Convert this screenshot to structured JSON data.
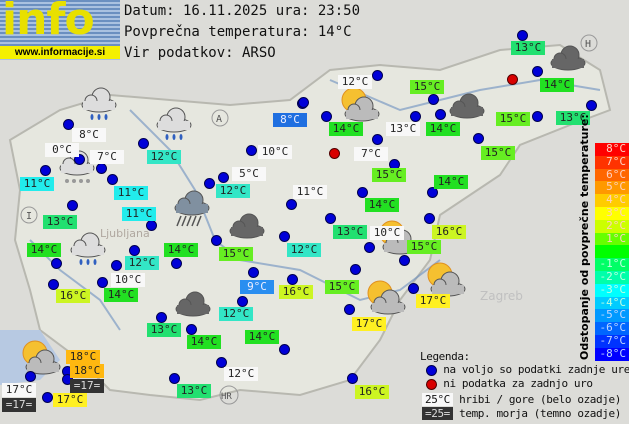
{
  "logo": {
    "text": "info",
    "url": "www.informacije.si"
  },
  "header": {
    "date_line": "Datum: 16.11.2025 ura: 23:50",
    "avg_temp_line": "Povprečna temperatura: 14°C",
    "source_line": "Vir podatkov: ARSO"
  },
  "stations": [
    {
      "t": "8°C",
      "k": "mountain"
    },
    {
      "t": "0°C",
      "k": "mountain"
    },
    {
      "t": "7°C",
      "k": "mountain"
    },
    {
      "t": "12°C",
      "k": "normal"
    },
    {
      "t": "10°C",
      "k": "mountain"
    },
    {
      "t": "8°C",
      "k": "normal"
    },
    {
      "t": "11°C",
      "k": "normal"
    },
    {
      "t": "5°C",
      "k": "mountain"
    },
    {
      "t": "12°C",
      "k": "normal"
    },
    {
      "t": "11°C",
      "k": "normal"
    },
    {
      "t": "11°C",
      "k": "mountain"
    },
    {
      "t": "11°C",
      "k": "normal"
    },
    {
      "t": "13°C",
      "k": "normal"
    },
    {
      "t": "13°C",
      "k": "normal"
    },
    {
      "t": "12°C",
      "k": "mountain"
    },
    {
      "t": "15°C",
      "k": "normal"
    },
    {
      "t": "14°C",
      "k": "normal"
    },
    {
      "t": "14°C",
      "k": "normal"
    },
    {
      "t": "13°C",
      "k": "mountain"
    },
    {
      "t": "14°C",
      "k": "normal"
    },
    {
      "t": "15°C",
      "k": "normal"
    },
    {
      "t": "13°C",
      "k": "normal"
    },
    {
      "t": "7°C",
      "k": "mountain"
    },
    {
      "t": "15°C",
      "k": "normal"
    },
    {
      "t": "15°C",
      "k": "normal"
    },
    {
      "t": "14°C",
      "k": "normal"
    },
    {
      "t": "14°C",
      "k": "normal"
    },
    {
      "t": "14°C",
      "k": "normal"
    },
    {
      "t": "14°C",
      "k": "normal"
    },
    {
      "t": "15°C",
      "k": "normal"
    },
    {
      "t": "12°C",
      "k": "normal"
    },
    {
      "t": "13°C",
      "k": "normal"
    },
    {
      "t": "10°C",
      "k": "mountain"
    },
    {
      "t": "16°C",
      "k": "normal"
    },
    {
      "t": "15°C",
      "k": "normal"
    },
    {
      "t": "12°C",
      "k": "normal"
    },
    {
      "t": "10°C",
      "k": "mountain"
    },
    {
      "t": "14°C",
      "k": "normal"
    },
    {
      "t": "16°C",
      "k": "normal"
    },
    {
      "t": "9°C",
      "k": "normal"
    },
    {
      "t": "16°C",
      "k": "normal"
    },
    {
      "t": "15°C",
      "k": "normal"
    },
    {
      "t": "17°C",
      "k": "normal"
    },
    {
      "t": "12°C",
      "k": "normal"
    },
    {
      "t": "17°C",
      "k": "normal"
    },
    {
      "t": "13°C",
      "k": "normal"
    },
    {
      "t": "14°C",
      "k": "normal"
    },
    {
      "t": "14°C",
      "k": "normal"
    },
    {
      "t": "18°C",
      "k": "normal"
    },
    {
      "t": "18°C",
      "k": "normal"
    },
    {
      "t": "=17=",
      "k": "sea"
    },
    {
      "t": "12°C",
      "k": "mountain"
    },
    {
      "t": "17°C",
      "k": "mountain"
    },
    {
      "t": "=17=",
      "k": "sea"
    },
    {
      "t": "17°C",
      "k": "normal"
    },
    {
      "t": "13°C",
      "k": "normal"
    },
    {
      "t": "16°C",
      "k": "normal"
    }
  ],
  "station_colors": {
    "8": "#1f6fe0",
    "9": "#2a8ef0",
    "11": "#22ecec",
    "12": "#33e6c6",
    "13": "#22e070",
    "14": "#22e022",
    "15": "#66ee22",
    "16": "#ccf522",
    "17": "#fff022",
    "18": "#ffb810",
    "mountain": "#f8f8f8",
    "sea": "#333333"
  },
  "dot_statuses": [
    "ok",
    "ok",
    "ok",
    "ok",
    "ok",
    "ok",
    "ok",
    "ok",
    "ok",
    "ok",
    "ok",
    "ok",
    "ok",
    "ok",
    "ok",
    "ok",
    "ok",
    "ok",
    "ok",
    "ok",
    "ok",
    "ok",
    "ok",
    "missing",
    "missing",
    "ok",
    "ok",
    "ok",
    "ok",
    "ok",
    "ok",
    "ok",
    "ok",
    "ok",
    "ok",
    "ok",
    "ok",
    "ok",
    "ok",
    "ok",
    "ok",
    "ok",
    "ok",
    "ok",
    "ok",
    "ok",
    "ok",
    "ok",
    "ok",
    "ok",
    "ok",
    "ok",
    "ok",
    "ok",
    "ok",
    "ok",
    "ok",
    "ok",
    "ok",
    "ok"
  ],
  "weather_icons": [
    "rain",
    "rain",
    "snow",
    "heavy-rain",
    "overcast",
    "rain",
    "partly-cloudy",
    "overcast",
    "overcast",
    "partly-cloudy",
    "partly-cloudy",
    "partly-cloudy",
    "overcast",
    "partly-cloudy"
  ],
  "map_labels": {
    "austria": "A",
    "hungary": "H",
    "italy": "I",
    "croatia": "HR",
    "ljubljana": "Ljubljana",
    "zagreb": "Zagreb"
  },
  "scale": {
    "title": "Odstopanje od povprečne temperature:",
    "rows": [
      {
        "label": "8°C",
        "color": "#ff0000"
      },
      {
        "label": "7°C",
        "color": "#ff3300"
      },
      {
        "label": "6°C",
        "color": "#ff6600"
      },
      {
        "label": "5°C",
        "color": "#ff9900"
      },
      {
        "label": "4°C",
        "color": "#ffcc00"
      },
      {
        "label": "3°C",
        "color": "#ffff00"
      },
      {
        "label": "2°C",
        "color": "#ccff00"
      },
      {
        "label": "1°C",
        "color": "#66ff00"
      },
      {
        "label": "",
        "color": "#00ff00"
      },
      {
        "label": "-1°C",
        "color": "#00ff66"
      },
      {
        "label": "-2°C",
        "color": "#00ffaa"
      },
      {
        "label": "-3°C",
        "color": "#00ffff"
      },
      {
        "label": "-4°C",
        "color": "#00ccff"
      },
      {
        "label": "-5°C",
        "color": "#0099ff"
      },
      {
        "label": "-6°C",
        "color": "#0066ff"
      },
      {
        "label": "-7°C",
        "color": "#0033ff"
      },
      {
        "label": "-8°C",
        "color": "#0000ff"
      }
    ]
  },
  "legend": {
    "title": "Legenda:",
    "blue_dot": "na voljo so podatki zadnje ure",
    "red_dot": "ni podatka za zadnjo uro",
    "mountain_sample": "25°C",
    "mountain_text": "hribi / gore (belo ozadje)",
    "sea_sample": "=25=",
    "sea_text": "temp. morja (temno ozadje)"
  }
}
